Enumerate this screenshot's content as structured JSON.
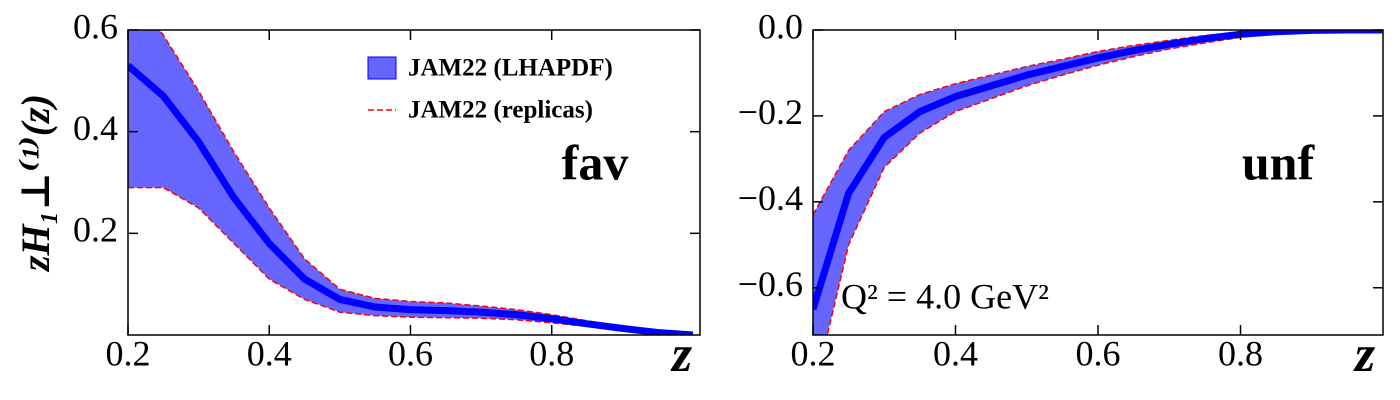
{
  "chart_data": [
    {
      "type": "band",
      "y_label": "zH₁⊥⁽¹⁾(z)",
      "x_label": "z",
      "panel_label": "fav",
      "x": [
        0.2,
        0.25,
        0.3,
        0.35,
        0.4,
        0.45,
        0.5,
        0.55,
        0.6,
        0.65,
        0.7,
        0.75,
        0.8,
        0.85,
        0.9,
        0.95,
        1.0
      ],
      "series": [
        {
          "name": "JAM22 (LHAPDF)",
          "color": "#0000ff",
          "values": [
            0.53,
            0.47,
            0.38,
            0.27,
            0.18,
            0.11,
            0.07,
            0.055,
            0.05,
            0.048,
            0.045,
            0.04,
            0.032,
            0.022,
            0.013,
            0.005,
            0.0
          ],
          "lower": [
            0.29,
            0.29,
            0.25,
            0.18,
            0.11,
            0.07,
            0.045,
            0.038,
            0.035,
            0.034,
            0.033,
            0.03,
            0.024,
            0.017,
            0.009,
            0.003,
            0.0
          ],
          "upper": [
            0.68,
            0.59,
            0.48,
            0.36,
            0.25,
            0.15,
            0.09,
            0.072,
            0.066,
            0.063,
            0.057,
            0.05,
            0.04,
            0.028,
            0.017,
            0.008,
            0.002
          ]
        },
        {
          "name": "JAM22 (replicas)",
          "color": "#ff0000",
          "style": "dashed"
        }
      ],
      "legend": "upper right",
      "xlim": [
        0.2,
        1.01
      ],
      "xticks": [
        0.2,
        0.4,
        0.6,
        0.8
      ],
      "ylim": [
        0,
        0.6
      ],
      "yticks": [
        0.2,
        0.4,
        0.6
      ]
    },
    {
      "type": "band",
      "x_label": "z",
      "panel_label": "unf",
      "annotation": "Q² = 4.0 GeV²",
      "x": [
        0.2,
        0.25,
        0.3,
        0.35,
        0.4,
        0.45,
        0.5,
        0.55,
        0.6,
        0.65,
        0.7,
        0.75,
        0.8,
        0.85,
        0.9,
        0.95,
        1.0
      ],
      "series": [
        {
          "color": "#0000ff",
          "values": [
            -0.65,
            -0.38,
            -0.25,
            -0.19,
            -0.155,
            -0.13,
            -0.105,
            -0.085,
            -0.065,
            -0.048,
            -0.033,
            -0.02,
            -0.01,
            -0.004,
            -0.001,
            0,
            0
          ],
          "lower": [
            -0.85,
            -0.5,
            -0.32,
            -0.24,
            -0.19,
            -0.16,
            -0.13,
            -0.105,
            -0.082,
            -0.062,
            -0.044,
            -0.03,
            -0.017,
            -0.008,
            -0.003,
            -0.001,
            0
          ],
          "upper": [
            -0.43,
            -0.28,
            -0.19,
            -0.15,
            -0.125,
            -0.105,
            -0.085,
            -0.068,
            -0.05,
            -0.036,
            -0.024,
            -0.013,
            -0.005,
            -0.001,
            0,
            0,
            0
          ]
        },
        {
          "color": "#ff0000",
          "style": "dashed"
        }
      ],
      "xlim": [
        0.2,
        1.0
      ],
      "xticks": [
        0.2,
        0.4,
        0.6,
        0.8
      ],
      "ylim": [
        -0.71,
        0
      ],
      "yticks": [
        {
          "value": -0.6,
          "label": "−0.6"
        },
        {
          "value": -0.4,
          "label": "−0.4"
        },
        {
          "value": -0.2,
          "label": "−0.2"
        },
        {
          "value": 0,
          "label": "0.0"
        }
      ]
    }
  ]
}
